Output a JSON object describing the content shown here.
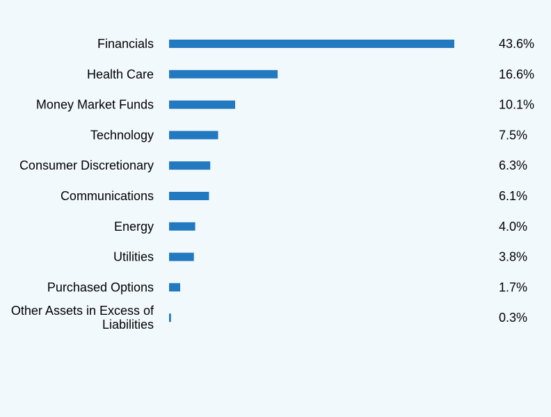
{
  "colors": {
    "background": "#f2f9fd",
    "bar": "#2379bf",
    "text": "#000000"
  },
  "chart_data": {
    "type": "bar",
    "orientation": "horizontal",
    "title": "",
    "xlabel": "",
    "ylabel": "",
    "grid": false,
    "legend": "none",
    "categories": [
      "Financials",
      "Health Care",
      "Money Market Funds",
      "Technology",
      "Consumer Discretionary",
      "Communications",
      "Energy",
      "Utilities",
      "Purchased Options",
      "Other Assets in Excess of Liabilities"
    ],
    "values": [
      43.6,
      16.6,
      10.1,
      7.5,
      6.3,
      6.1,
      4.0,
      3.8,
      1.7,
      0.3
    ],
    "value_labels": [
      "43.6%",
      "16.6%",
      "10.1%",
      "7.5%",
      "6.3%",
      "6.1%",
      "4.0%",
      "3.8%",
      "1.7%",
      "0.3%"
    ],
    "xlim": [
      0,
      43.6
    ]
  }
}
